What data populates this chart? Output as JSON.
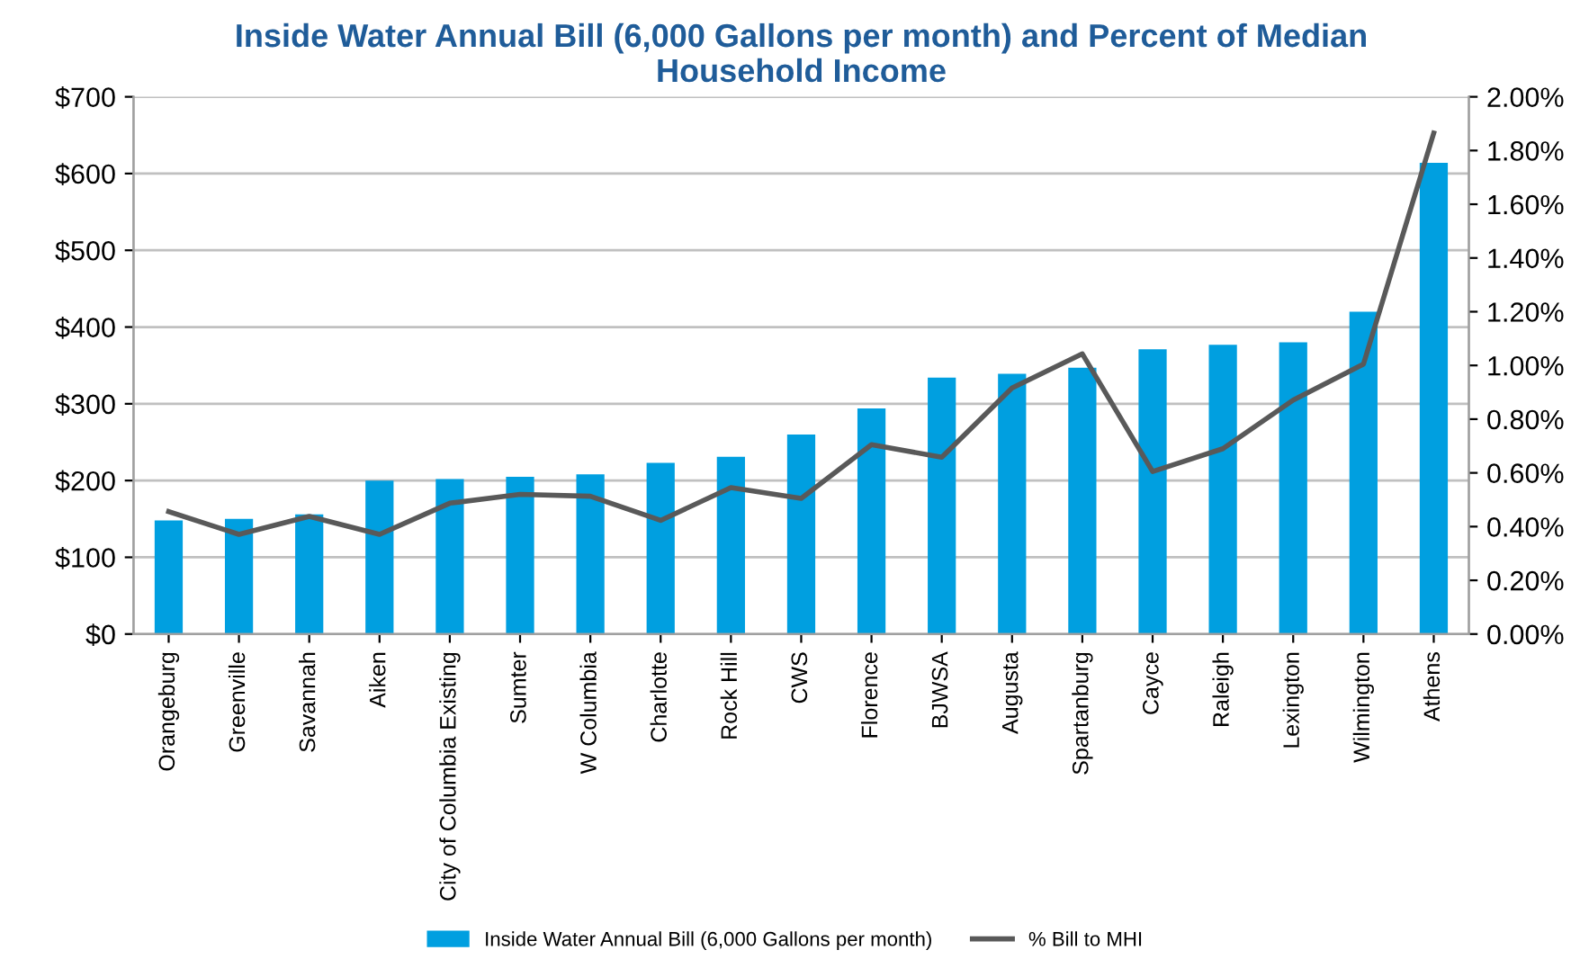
{
  "chart_data": {
    "type": "bar",
    "title": "Inside Water Annual Bill (6,000 Gallons per month) and Percent of Median\nHousehold Income",
    "categories": [
      "Orangeburg",
      "Greenville",
      "Savannah",
      "Aiken",
      "City of Columbia Existing",
      "Sumter",
      "W Columbia",
      "Charlotte",
      "Rock Hill",
      "CWS",
      "Florence",
      "BJWSA",
      "Augusta",
      "Spartanburg",
      "Cayce",
      "Raleigh",
      "Lexington",
      "Wilmington",
      "Athens"
    ],
    "series": [
      {
        "name": "Inside Water Annual Bill (6,000 Gallons per month)",
        "color": "#009fe0",
        "values": [
          148,
          150,
          156,
          200,
          202,
          205,
          208,
          223,
          231,
          260,
          294,
          334,
          339,
          347,
          371,
          377,
          380,
          420,
          614
        ]
      },
      {
        "name": "% Bill to MHI",
        "type": "line",
        "axis": "y2",
        "color": "#595959",
        "values": [
          0.456,
          0.371,
          0.438,
          0.371,
          0.487,
          0.52,
          0.513,
          0.423,
          0.545,
          0.505,
          0.705,
          0.658,
          0.916,
          1.043,
          0.605,
          0.69,
          0.871,
          1.005,
          1.865
        ]
      }
    ],
    "ylim": [
      0,
      700
    ],
    "yticks": [
      {
        "value": 0,
        "label": "$0"
      },
      {
        "value": 100,
        "label": "$100"
      },
      {
        "value": 200,
        "label": "$200"
      },
      {
        "value": 300,
        "label": "$300"
      },
      {
        "value": 400,
        "label": "$400"
      },
      {
        "value": 500,
        "label": "$500"
      },
      {
        "value": 600,
        "label": "$600"
      },
      {
        "value": 700,
        "label": "$700"
      }
    ],
    "y2lim": [
      0,
      2
    ],
    "y2ticks": [
      {
        "value": 0,
        "label": "0.00%"
      },
      {
        "value": 0.2,
        "label": "0.20%"
      },
      {
        "value": 0.4,
        "label": "0.40%"
      },
      {
        "value": 0.6,
        "label": "0.60%"
      },
      {
        "value": 0.8,
        "label": "0.80%"
      },
      {
        "value": 1.0,
        "label": "1.00%"
      },
      {
        "value": 1.2,
        "label": "1.20%"
      },
      {
        "value": 1.4,
        "label": "1.40%"
      },
      {
        "value": 1.6,
        "label": "1.60%"
      },
      {
        "value": 1.8,
        "label": "1.80%"
      },
      {
        "value": 2.0,
        "label": "2.00%"
      }
    ],
    "grid": "y",
    "legend": "bottom",
    "marker": "none",
    "line_style": "solid"
  }
}
